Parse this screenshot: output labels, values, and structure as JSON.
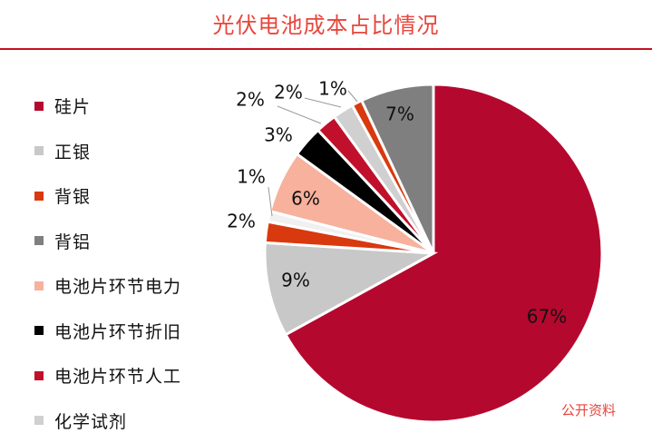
{
  "title": "光伏电池成本占比情况",
  "source": "公开资料",
  "colors": {
    "title": "#e8463c",
    "rule": "#c3121f",
    "source": "#e8463c"
  },
  "chart_data": {
    "type": "pie",
    "title": "光伏电池成本占比情况",
    "legend_position": "left",
    "slices": [
      {
        "label": "硅片",
        "value": 67,
        "display": "67%",
        "color": "#b5082e"
      },
      {
        "label": "正银",
        "value": 9,
        "display": "9%",
        "color": "#c8c8c8"
      },
      {
        "label": "背银",
        "value": 2,
        "display": "2%",
        "color": "#d9390e"
      },
      {
        "label": "背铝",
        "value": 7,
        "display": "7%",
        "color": "#7f7f7f"
      },
      {
        "label": "电池片环节电力",
        "value": 6,
        "display": "6%",
        "color": "#f7b19d"
      },
      {
        "label": "电池片环节折旧",
        "value": 3,
        "display": "3%",
        "color": "#000000"
      },
      {
        "label": "电池片环节人工",
        "value": 2,
        "display": "2%",
        "color": "#c0102c"
      },
      {
        "label": "化学试剂",
        "value": 2,
        "display": "2%",
        "color": "#d0d0d0"
      }
    ],
    "pie_order": [
      {
        "display": "67%",
        "value": 67,
        "color": "#b5082e"
      },
      {
        "display": "9%",
        "value": 9,
        "color": "#c8c8c8"
      },
      {
        "display": "2%",
        "value": 2,
        "color": "#d9390e"
      },
      {
        "display": "1%",
        "value": 1,
        "color": "#f0f0f0"
      },
      {
        "display": "6%",
        "value": 6,
        "color": "#f7b19d"
      },
      {
        "display": "3%",
        "value": 3,
        "color": "#000000"
      },
      {
        "display": "2%",
        "value": 2,
        "color": "#c0102c"
      },
      {
        "display": "2%",
        "value": 2,
        "color": "#d0d0d0"
      },
      {
        "display": "1%",
        "value": 1,
        "color": "#d9390e"
      },
      {
        "display": "7%",
        "value": 7,
        "color": "#7f7f7f"
      }
    ]
  }
}
